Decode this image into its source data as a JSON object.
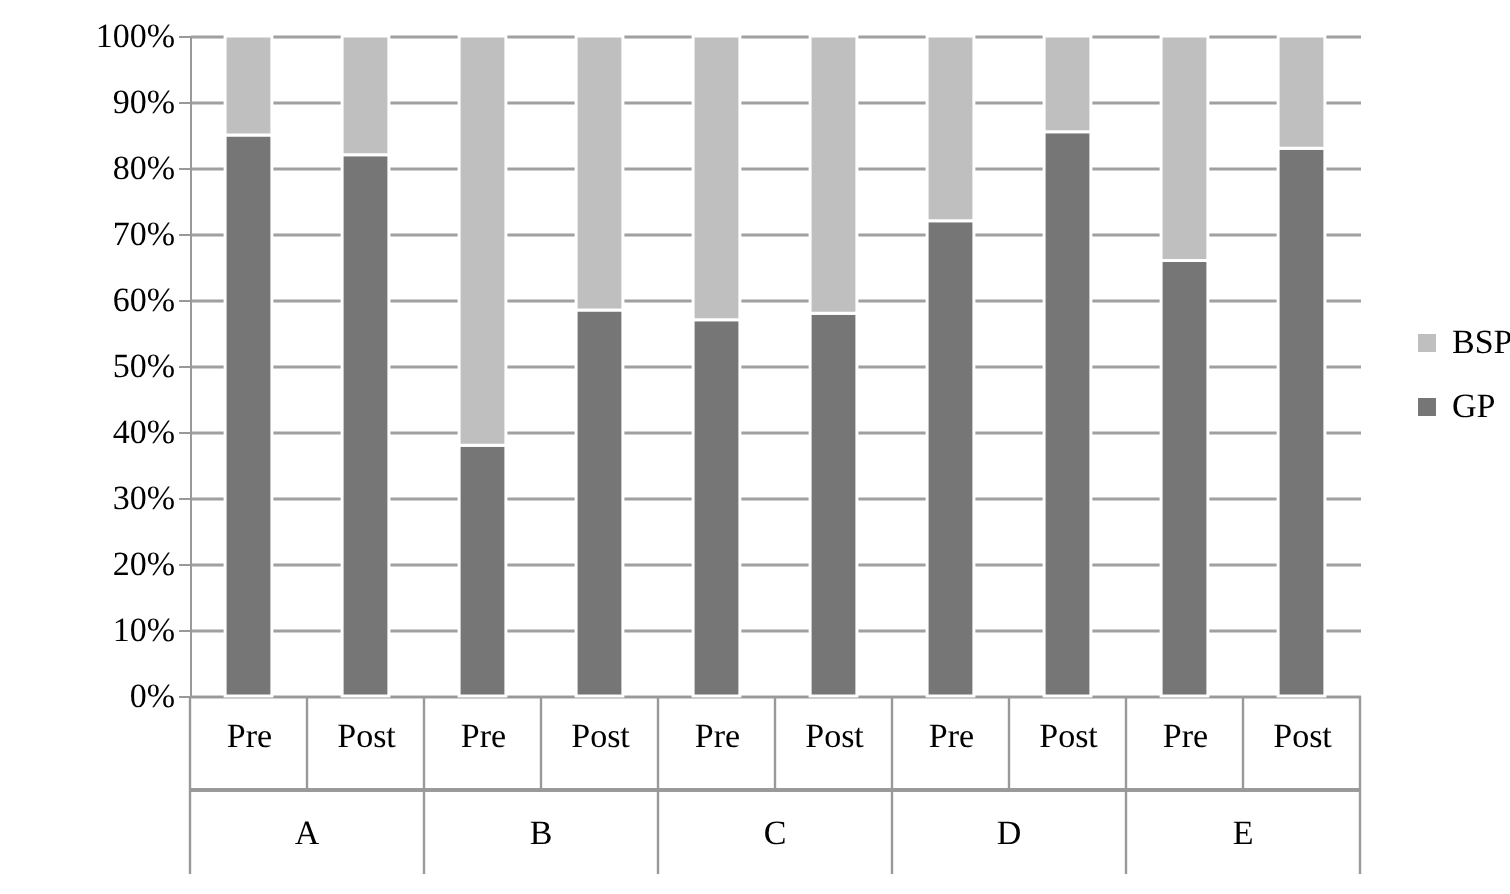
{
  "chart_data": {
    "type": "bar",
    "stacked": true,
    "categories": [
      "Pre",
      "Post",
      "Pre",
      "Post",
      "Pre",
      "Post",
      "Pre",
      "Post",
      "Pre",
      "Post"
    ],
    "annotations": [
      "A",
      "B",
      "C",
      "D",
      "E"
    ],
    "series": [
      {
        "name": "GP",
        "color": "#767676",
        "values": [
          85,
          82,
          38,
          58.5,
          57,
          58,
          72,
          85.5,
          66,
          83
        ]
      },
      {
        "name": "BSP",
        "color": "#bfbfbf",
        "values": [
          15,
          18,
          62,
          41.5,
          43,
          42,
          28,
          14.5,
          34,
          17
        ]
      }
    ],
    "ylim": [
      0,
      100
    ],
    "yticks": [
      {
        "value": 0,
        "label": "0%"
      },
      {
        "value": 10,
        "label": "10%"
      },
      {
        "value": 20,
        "label": "20%"
      },
      {
        "value": 30,
        "label": "30%"
      },
      {
        "value": 40,
        "label": "40%"
      },
      {
        "value": 50,
        "label": "50%"
      },
      {
        "value": 60,
        "label": "60%"
      },
      {
        "value": 70,
        "label": "70%"
      },
      {
        "value": 80,
        "label": "80%"
      },
      {
        "value": 90,
        "label": "90%"
      },
      {
        "value": 100,
        "label": "100%"
      }
    ],
    "grid": "y",
    "legend": "right"
  }
}
